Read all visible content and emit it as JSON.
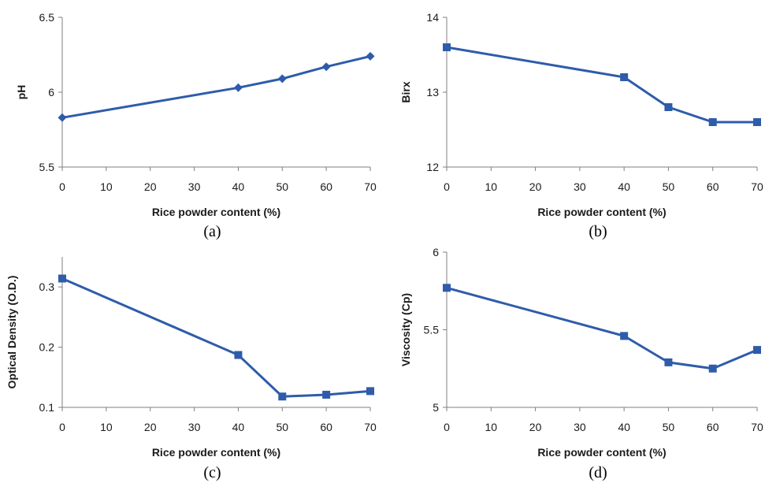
{
  "chart_data": [
    {
      "type": "line",
      "panel_label": "(a)",
      "xlabel": "Rice powder content (%)",
      "ylabel": "pH",
      "xlim": [
        0,
        70
      ],
      "ylim": [
        5.5,
        6.5
      ],
      "x_ticks": [
        0,
        10,
        20,
        30,
        40,
        50,
        60,
        70
      ],
      "y_ticks": [
        5.5,
        6,
        6.5
      ],
      "y_tick_labels": [
        "5.5",
        "6",
        "6.5"
      ],
      "marker": "diamond",
      "color": "#2e5caa",
      "grid": false,
      "series": [
        {
          "x": [
            0,
            40,
            50,
            60,
            70
          ],
          "values": [
            5.83,
            6.03,
            6.09,
            6.17,
            6.24
          ]
        }
      ]
    },
    {
      "type": "line",
      "panel_label": "(b)",
      "xlabel": "Rice powder content (%)",
      "ylabel": "Birx",
      "xlim": [
        0,
        70
      ],
      "ylim": [
        12,
        14
      ],
      "x_ticks": [
        0,
        10,
        20,
        30,
        40,
        50,
        60,
        70
      ],
      "y_ticks": [
        12,
        13,
        14
      ],
      "y_tick_labels": [
        "12",
        "13",
        "14"
      ],
      "marker": "square",
      "color": "#2e5caa",
      "grid": false,
      "series": [
        {
          "x": [
            0,
            40,
            50,
            60,
            70
          ],
          "values": [
            13.6,
            13.2,
            12.8,
            12.6,
            12.6
          ]
        }
      ]
    },
    {
      "type": "line",
      "panel_label": "(c)",
      "xlabel": "Rice powder content (%)",
      "ylabel": "Optical Density (O.D.)",
      "xlim": [
        0,
        70
      ],
      "ylim": [
        0.1,
        0.35
      ],
      "x_ticks": [
        0,
        10,
        20,
        30,
        40,
        50,
        60,
        70
      ],
      "y_ticks": [
        0.1,
        0.2,
        0.3
      ],
      "y_tick_labels": [
        "0.1",
        "0.2",
        "0.3"
      ],
      "marker": "square",
      "color": "#2e5caa",
      "grid": false,
      "series": [
        {
          "x": [
            0,
            40,
            50,
            60,
            70
          ],
          "values": [
            0.314,
            0.187,
            0.118,
            0.121,
            0.127
          ]
        }
      ]
    },
    {
      "type": "line",
      "panel_label": "(d)",
      "xlabel": "Rice powder content (%)",
      "ylabel": "Viscosity (Cp)",
      "xlim": [
        0,
        70
      ],
      "ylim": [
        5,
        6
      ],
      "x_ticks": [
        0,
        10,
        20,
        30,
        40,
        50,
        60,
        70
      ],
      "y_ticks": [
        5,
        5.5,
        6
      ],
      "y_tick_labels": [
        "5",
        "5.5",
        "6"
      ],
      "marker": "square",
      "color": "#2e5caa",
      "grid": false,
      "series": [
        {
          "x": [
            0,
            40,
            50,
            60,
            70
          ],
          "values": [
            5.77,
            5.46,
            5.29,
            5.25,
            5.37
          ]
        }
      ]
    }
  ]
}
